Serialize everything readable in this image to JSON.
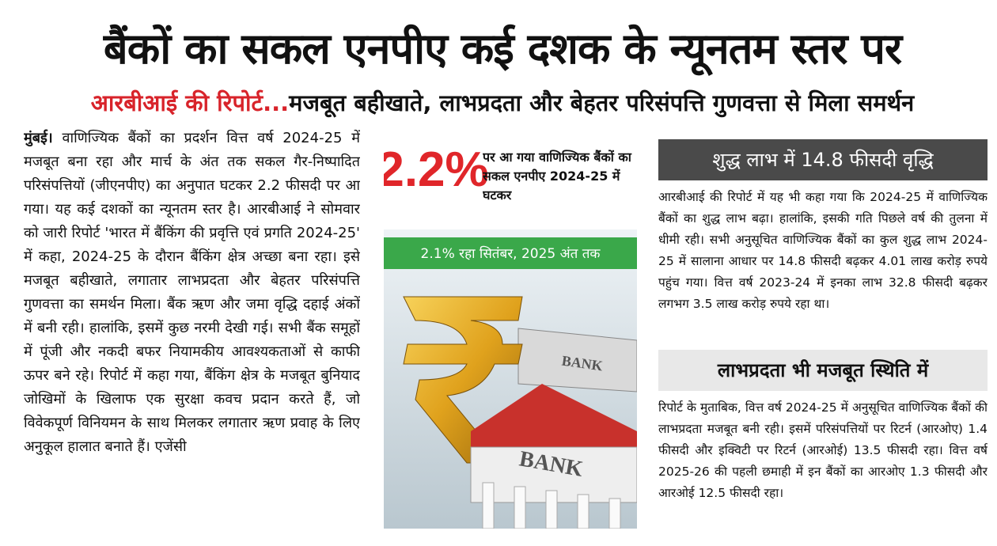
{
  "header": {
    "headline": "बैंकों का सकल एनपीए कई दशक के न्यूनतम स्तर पर",
    "kicker": "आरबीआई की रिपोर्ट...",
    "subheadline": "मजबूत बहीखाते, लाभप्रदता और बेहतर परिसंपत्ति गुणवत्ता से मिला समर्थन"
  },
  "article": {
    "dateline": "मुंबई।",
    "body": "वाणिज्यिक बैंकों का प्रदर्शन वित्त वर्ष 2024-25 में मजबूत बना रहा और मार्च के अंत तक सकल गैर-निष्पादित परिसंपत्तियों (जीएनपीए) का अनुपात घटकर 2.2 फीसदी पर आ गया। यह कई दशकों का न्यूनतम स्तर है। आरबीआई ने सोमवार को जारी रिपोर्ट 'भारत में बैंकिंग की प्रवृत्ति एवं प्रगति 2024-25' में कहा, 2024-25 के दौरान बैंकिंग क्षेत्र अच्छा बना रहा। इसे मजबूत बहीखाते, लगातार लाभप्रदता और बेहतर परिसंपत्ति गुणवत्ता का समर्थन मिला। बैंक ऋण और जमा वृद्धि दहाई अंकों में बनी रही। हालांकि, इसमें कुछ नरमी देखी गई। सभी बैंक समूहों में पूंजी और नकदी बफर नियामकीय आवश्यकताओं से काफी ऊपर बने रहे। रिपोर्ट में कहा गया, बैंकिंग क्षेत्र के मजबूत बुनियाद जोखिमों के खिलाफ एक सुरक्षा कवच प्रदान करते हैं, जो विवेकपूर्ण विनियमन के साथ मिलकर लगातार ऋण प्रवाह के लिए अनुकूल हालात बनाते हैं। एजेंसी"
  },
  "infographic": {
    "big_figure": "2.2%",
    "caption": "पर आ गया वाणिज्यिक बैंकों का सकल एनपीए 2024-25 में घटकर",
    "band": "2.1% रहा सितंबर, 2025 अंत तक",
    "signs": [
      "BANK",
      "BANK"
    ]
  },
  "sidebar": {
    "sections": [
      {
        "heading": "शुद्ध लाभ में 14.8 फीसदी वृद्धि",
        "text": "आरबीआई की रिपोर्ट में यह भी कहा गया कि 2024-25 में वाणिज्यिक बैंकों का शुद्ध लाभ बढ़ा। हालांकि, इसकी गति पिछले वर्ष की तुलना में धीमी रही। सभी अनुसूचित वाणिज्यिक बैंकों का कुल शुद्ध लाभ 2024-25 में सालाना आधार पर 14.8 फीसदी बढ़कर 4.01 लाख करोड़ रुपये पहुंच गया। वित्त वर्ष 2023-24 में इनका लाभ 32.8 फीसदी बढ़कर लगभग 3.5 लाख करोड़ रुपये रहा था।"
      },
      {
        "heading": "लाभप्रदता भी मजबूत स्थिति में",
        "text": "रिपोर्ट के मुताबिक, वित्त वर्ष 2024-25 में अनुसूचित वाणिज्यिक बैंकों की लाभप्रदता मजबूत बनी रही। इसमें परिसंपत्तियों पर रिटर्न (आरओए) 1.4 फीसदी और इक्विटी पर रिटर्न (आरओई) 13.5 फीसदी रहा। वित्त वर्ष 2025-26 की पहली छमाही में इन बैंकों का आरओए 1.3 फीसदी और आरओई 12.5 फीसदी रहा।"
      }
    ]
  }
}
